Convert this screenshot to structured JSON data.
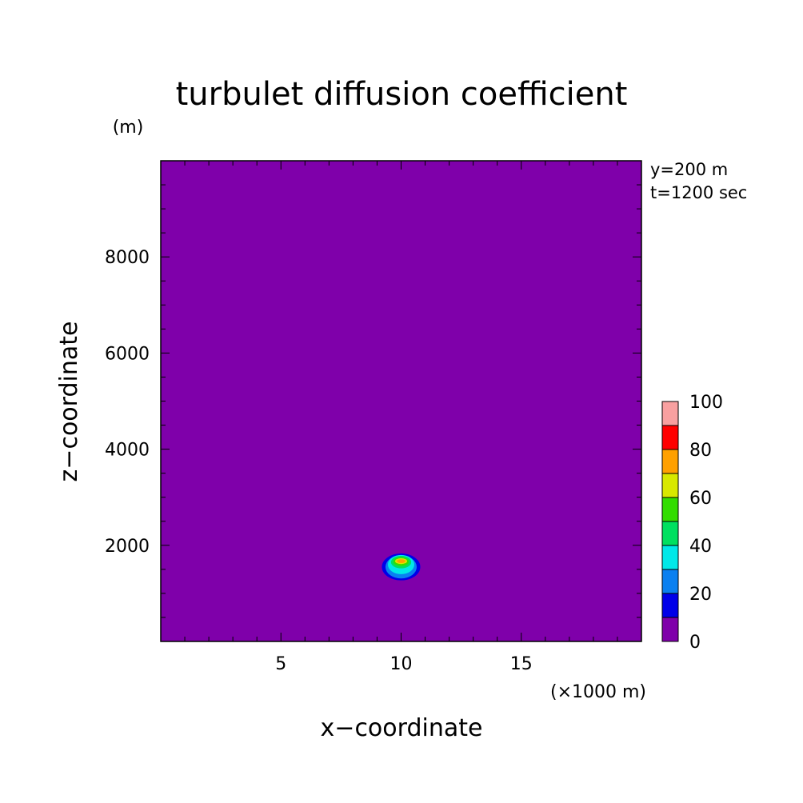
{
  "chart_data": {
    "type": "heatmap",
    "title": "turbulet diffusion coefficient",
    "yunit": "(m)",
    "xlabel": "x−coordinate",
    "ylabel": "z−coordinate",
    "xunit": "(×1000 m)",
    "annotations": [
      "y=200 m",
      "t=1200 sec"
    ],
    "xlim": [
      0,
      20
    ],
    "ylim": [
      0,
      10000
    ],
    "xticks": [
      5,
      10,
      15
    ],
    "xtick_labels": [
      "5",
      "10",
      "15"
    ],
    "yticks": [
      2000,
      4000,
      6000,
      8000
    ],
    "ytick_labels": [
      "2000",
      "4000",
      "6000",
      "8000"
    ],
    "background_color": "#7f00aa",
    "feature": {
      "description_center_x": 10.0,
      "center_z": 1550,
      "rings": [
        {
          "value": 10,
          "rx": 0.8,
          "rz": 280,
          "color": "#0000e8"
        },
        {
          "value": 30,
          "rx": 0.65,
          "rz": 240,
          "color": "#0a80f0"
        },
        {
          "value": 40,
          "rx": 0.55,
          "rz": 200,
          "color": "#00e8e8",
          "dz": 50
        },
        {
          "value": 50,
          "rx": 0.42,
          "rz": 130,
          "color": "#00e060",
          "dz": 100
        },
        {
          "value": 60,
          "rx": 0.32,
          "rz": 90,
          "color": "#33dd00",
          "dz": 110
        },
        {
          "value": 70,
          "rx": 0.25,
          "rz": 60,
          "color": "#d8e800",
          "dz": 120
        },
        {
          "value": 80,
          "rx": 0.18,
          "rz": 40,
          "color": "#ffa000",
          "dz": 120
        }
      ]
    },
    "colorbar": {
      "levels": [
        0,
        10,
        20,
        30,
        40,
        50,
        60,
        70,
        80,
        90,
        100
      ],
      "colors": [
        "#7f00aa",
        "#0000e8",
        "#0a80f0",
        "#00e8e8",
        "#00e060",
        "#33dd00",
        "#d8e800",
        "#ffa000",
        "#ff0000",
        "#f8a0a0"
      ],
      "tick_values": [
        0,
        20,
        40,
        60,
        80,
        100
      ],
      "tick_labels": [
        "0",
        "20",
        "40",
        "60",
        "80",
        "100"
      ]
    }
  }
}
